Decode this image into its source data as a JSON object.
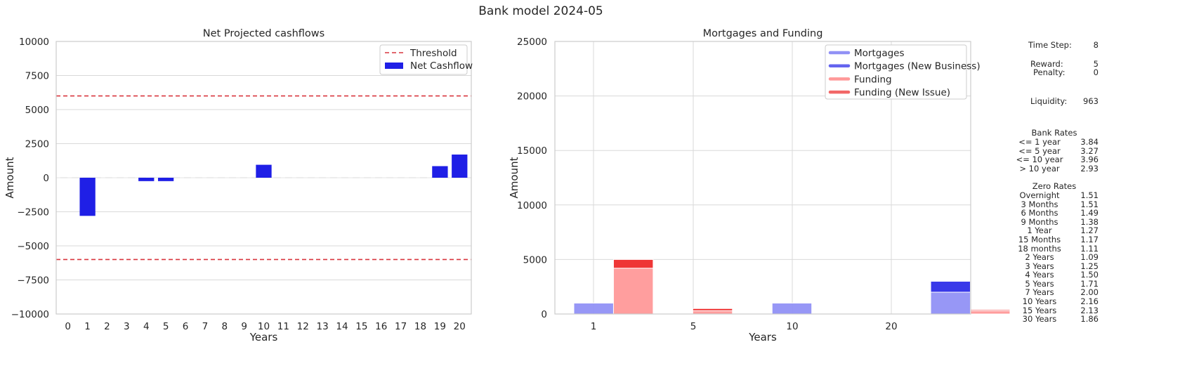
{
  "suptitle": "Bank model 2024-05",
  "chart_data": [
    {
      "type": "bar",
      "title": "Net Projected cashflows",
      "xlabel": "Years",
      "ylabel": "Amount",
      "ylim": [
        -10000,
        10000
      ],
      "yticks": [
        10000,
        7500,
        5000,
        2500,
        0,
        -2500,
        -5000,
        -7500,
        -10000
      ],
      "ytick_labels": [
        "10000",
        "7500",
        "5000",
        "2500",
        "0",
        "−2500",
        "−5000",
        "−7500",
        "−10000"
      ],
      "categories": [
        "0",
        "1",
        "2",
        "3",
        "4",
        "5",
        "6",
        "7",
        "8",
        "9",
        "10",
        "11",
        "12",
        "13",
        "14",
        "15",
        "16",
        "17",
        "18",
        "19",
        "20"
      ],
      "series": [
        {
          "name": "Net Cashflow",
          "color": "#1f1fe6",
          "values": [
            0,
            -2800,
            0,
            0,
            -250,
            -250,
            0,
            0,
            0,
            0,
            950,
            0,
            0,
            0,
            0,
            0,
            0,
            0,
            0,
            850,
            1700
          ]
        }
      ],
      "thresholds": [
        6000,
        -6000
      ],
      "threshold_name": "Threshold",
      "threshold_color": "#d9363e",
      "legend_position": "upper right",
      "grid": true
    },
    {
      "type": "bar",
      "title": "Mortgages and Funding",
      "xlabel": "Years",
      "ylabel": "Amount",
      "ylim": [
        0,
        25000
      ],
      "yticks": [
        0,
        5000,
        10000,
        15000,
        20000,
        25000
      ],
      "xticks": [
        1,
        5,
        10,
        20
      ],
      "legend_position": "upper right",
      "grid": true,
      "series": [
        {
          "name": "Mortgages",
          "color": "#9191f5",
          "bars": [
            {
              "x0": 0,
              "x1": 2,
              "value": 1000
            },
            {
              "x0": 10,
              "x1": 12,
              "value": 1000
            },
            {
              "x0": 18,
              "x1": 20,
              "value": 2000
            }
          ]
        },
        {
          "name": "Mortgages (New Business)",
          "color": "#2e2ee8",
          "bars": [
            {
              "x0": 18,
              "x1": 20,
              "base": 2000,
              "value": 1000
            }
          ]
        },
        {
          "name": "Funding",
          "color": "#ff9999",
          "bars": [
            {
              "x0": 2,
              "x1": 4,
              "value": 4200
            },
            {
              "x0": 6,
              "x1": 8,
              "value": 300
            },
            {
              "x0": 20,
              "x1": 22,
              "value": 300
            }
          ]
        },
        {
          "name": "Funding (New Issue)",
          "color": "#ee2b2b",
          "bars": [
            {
              "x0": 2,
              "x1": 4,
              "base": 4200,
              "value": 800
            },
            {
              "x0": 6,
              "x1": 8,
              "base": 300,
              "value": 200
            },
            {
              "x0": 20,
              "x1": 22,
              "base": 300,
              "value": 100
            }
          ]
        }
      ],
      "legend_colors": [
        "#9191f5",
        "#6464ef",
        "#ff9999",
        "#f26767"
      ]
    }
  ],
  "info": {
    "time_step_label": "Time Step:",
    "time_step": "8",
    "reward_label": "Reward:",
    "reward": "5",
    "penalty_label": "Penalty:",
    "penalty": "0",
    "liquidity_label": "Liquidity:",
    "liquidity": "963",
    "bank_rates_title": "Bank Rates",
    "bank_rates": [
      {
        "label": "<= 1 year",
        "value": "3.84"
      },
      {
        "label": "<= 5 year",
        "value": "3.27"
      },
      {
        "label": "<= 10 year",
        "value": "3.96"
      },
      {
        "label": "> 10 year",
        "value": "2.93"
      }
    ],
    "zero_rates_title": "Zero Rates",
    "zero_rates": [
      {
        "label": "Overnight",
        "value": "1.51"
      },
      {
        "label": "3 Months",
        "value": "1.51"
      },
      {
        "label": "6 Months",
        "value": "1.49"
      },
      {
        "label": "9 Months",
        "value": "1.38"
      },
      {
        "label": "1 Year",
        "value": "1.27"
      },
      {
        "label": "15 Months",
        "value": "1.17"
      },
      {
        "label": "18 months",
        "value": "1.11"
      },
      {
        "label": "2 Years",
        "value": "1.09"
      },
      {
        "label": "3 Years",
        "value": "1.25"
      },
      {
        "label": "4 Years",
        "value": "1.50"
      },
      {
        "label": "5 Years",
        "value": "1.71"
      },
      {
        "label": "7 Years",
        "value": "2.00"
      },
      {
        "label": "10 Years",
        "value": "2.16"
      },
      {
        "label": "15 Years",
        "value": "2.13"
      },
      {
        "label": "30 Years",
        "value": "1.86"
      }
    ]
  }
}
